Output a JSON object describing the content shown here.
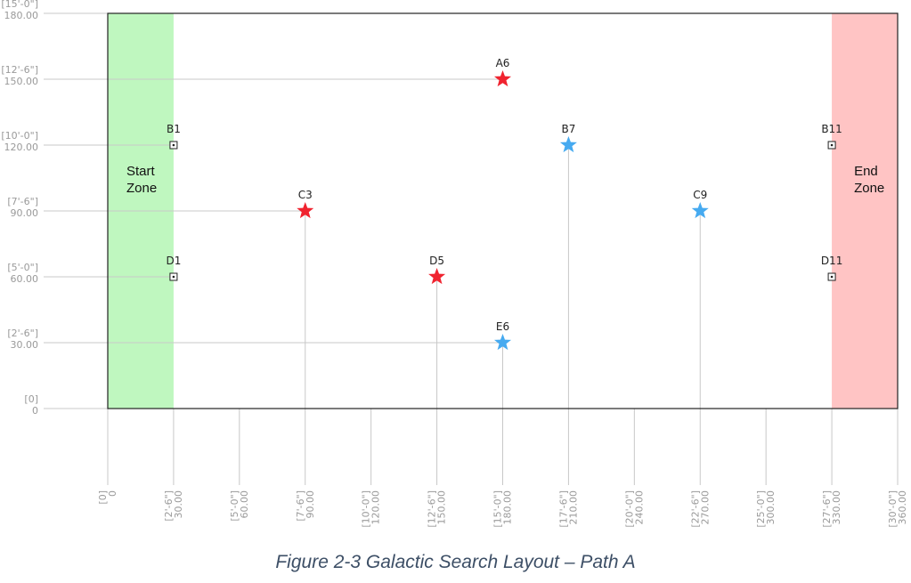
{
  "caption": "Figure 2-3 Galactic Search Layout – Path A",
  "colors": {
    "start_zone": "#bff7bf",
    "end_zone": "#ffc4c4",
    "red_star": "#f0232f",
    "blue_star": "#46aaf0",
    "gridline": "#c8c8c8",
    "axis_text": "#9a9a9a",
    "caption": "#3d4f66"
  },
  "zones": {
    "start": {
      "line1": "Start",
      "line2": "Zone",
      "x_from": 0,
      "x_to": 30
    },
    "end": {
      "line1": "End",
      "line2": "Zone",
      "x_from": 330,
      "x_to": 360
    }
  },
  "axes": {
    "x_range": [
      0,
      360
    ],
    "y_range": [
      0,
      180
    ],
    "y_ticks": [
      {
        "value": 0,
        "ft": "[0]",
        "in": "0"
      },
      {
        "value": 30,
        "ft": "[2'-6\"]",
        "in": "30.00"
      },
      {
        "value": 60,
        "ft": "[5'-0\"]",
        "in": "60.00"
      },
      {
        "value": 90,
        "ft": "[7'-6\"]",
        "in": "90.00"
      },
      {
        "value": 120,
        "ft": "[10'-0\"]",
        "in": "120.00"
      },
      {
        "value": 150,
        "ft": "[12'-6\"]",
        "in": "150.00"
      },
      {
        "value": 180,
        "ft": "[15'-0\"]",
        "in": "180.00"
      }
    ],
    "x_ticks": [
      {
        "value": 0,
        "ft": "[0]",
        "in": "0"
      },
      {
        "value": 30,
        "ft": "[2'-6\"]",
        "in": "30.00"
      },
      {
        "value": 60,
        "ft": "[5'-0\"]",
        "in": "60.00"
      },
      {
        "value": 90,
        "ft": "[7'-6\"]",
        "in": "90.00"
      },
      {
        "value": 120,
        "ft": "[10'-0\"]",
        "in": "120.00"
      },
      {
        "value": 150,
        "ft": "[12'-6\"]",
        "in": "150.00"
      },
      {
        "value": 180,
        "ft": "[15'-0\"]",
        "in": "180.00"
      },
      {
        "value": 210,
        "ft": "[17'-6\"]",
        "in": "210.00"
      },
      {
        "value": 240,
        "ft": "[20'-0\"]",
        "in": "240.00"
      },
      {
        "value": 270,
        "ft": "[22'-6\"]",
        "in": "270.00"
      },
      {
        "value": 300,
        "ft": "[25'-0\"]",
        "in": "300.00"
      },
      {
        "value": 330,
        "ft": "[27'-6\"]",
        "in": "330.00"
      },
      {
        "value": 360,
        "ft": "[30'-0\"]",
        "in": "360.00"
      }
    ]
  },
  "points": [
    {
      "label": "A6",
      "x": 180,
      "y": 150,
      "kind": "star",
      "color": "red",
      "guide": "horizontal"
    },
    {
      "label": "B1",
      "x": 30,
      "y": 120,
      "kind": "marker",
      "guide": "horizontal"
    },
    {
      "label": "B7",
      "x": 210,
      "y": 120,
      "kind": "star",
      "color": "blue",
      "guide": "vertical"
    },
    {
      "label": "B11",
      "x": 330,
      "y": 120,
      "kind": "marker",
      "guide": "none"
    },
    {
      "label": "C3",
      "x": 90,
      "y": 90,
      "kind": "star",
      "color": "red",
      "guide": "both"
    },
    {
      "label": "C9",
      "x": 270,
      "y": 90,
      "kind": "star",
      "color": "blue",
      "guide": "vertical"
    },
    {
      "label": "D1",
      "x": 30,
      "y": 60,
      "kind": "marker",
      "guide": "horizontal"
    },
    {
      "label": "D5",
      "x": 150,
      "y": 60,
      "kind": "star",
      "color": "red",
      "guide": "vertical"
    },
    {
      "label": "D11",
      "x": 330,
      "y": 60,
      "kind": "marker",
      "guide": "none"
    },
    {
      "label": "E6",
      "x": 180,
      "y": 30,
      "kind": "star",
      "color": "blue",
      "guide": "both"
    }
  ]
}
